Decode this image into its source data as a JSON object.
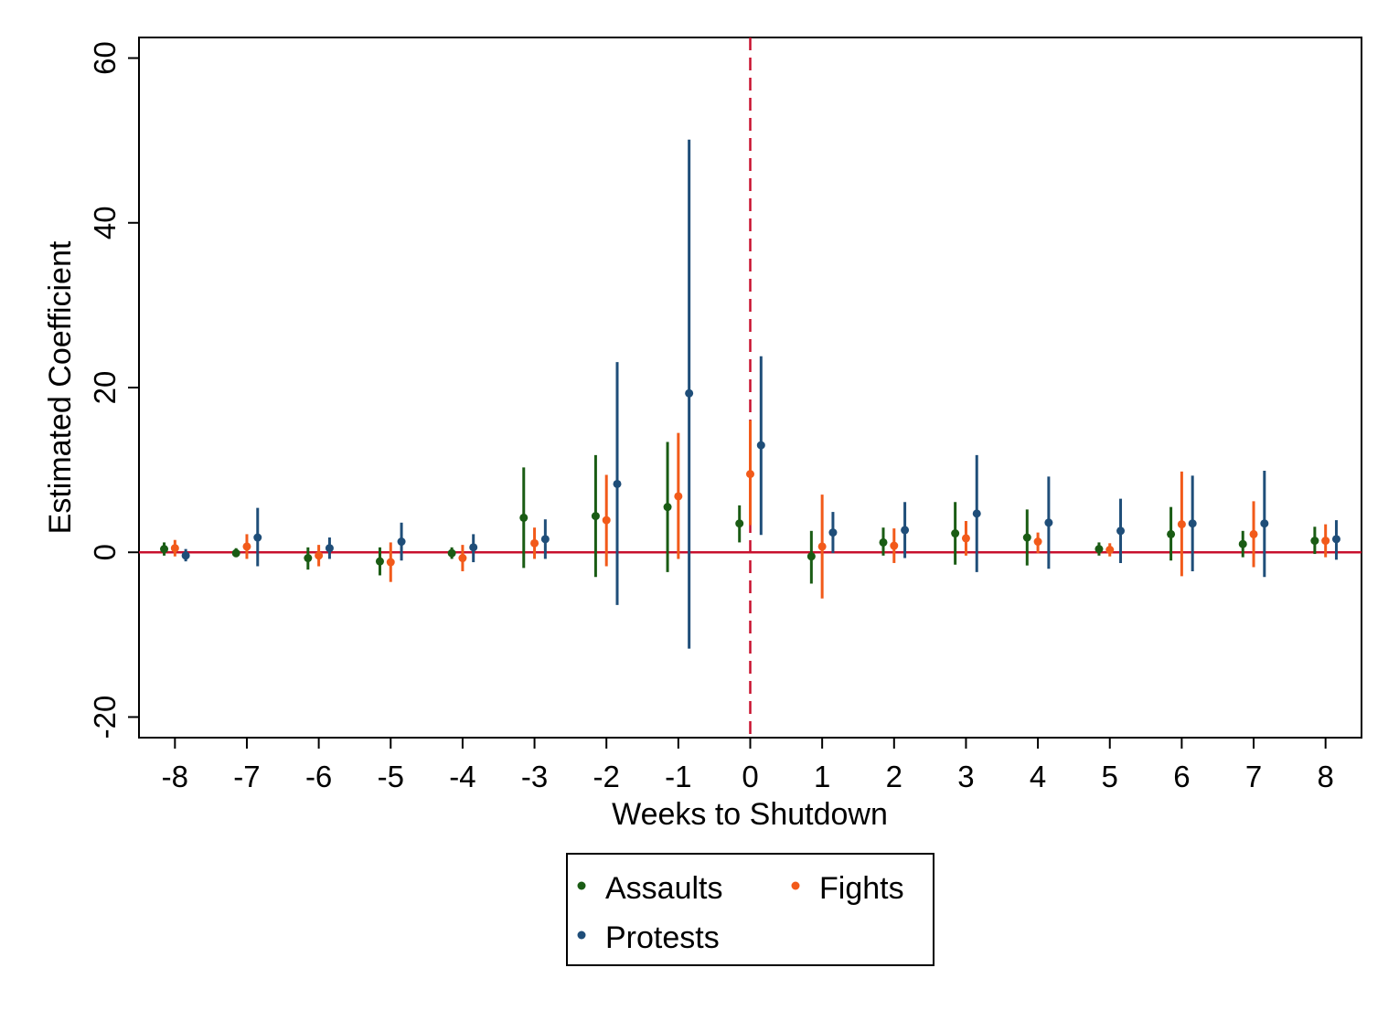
{
  "chart_data": {
    "type": "scatter",
    "title": "",
    "xlabel": "Weeks to Shutdown",
    "ylabel": "Estimated Coefficient",
    "xlim": [
      -8.5,
      8.5
    ],
    "ylim": [
      -22.5,
      62.5
    ],
    "x_ticks": [
      -8,
      -7,
      -6,
      -5,
      -4,
      -3,
      -2,
      -1,
      0,
      1,
      2,
      3,
      4,
      5,
      6,
      7,
      8
    ],
    "x_tick_labels": [
      "-8",
      "-7",
      "-6",
      "-5",
      "-4",
      "-3",
      "-2",
      "-1",
      "0",
      "1",
      "2",
      "3",
      "4",
      "5",
      "6",
      "7",
      "8"
    ],
    "y_ticks": [
      -20,
      0,
      20,
      40,
      60
    ],
    "y_tick_labels": [
      "-20",
      "0",
      "20",
      "40",
      "60"
    ],
    "grid": false,
    "reference_lines": {
      "horizontal_y": 0,
      "vertical_x": 0,
      "color": "#c8102e"
    },
    "legend": {
      "placement": "bottom-center",
      "entries": [
        "Assaults",
        "Fights",
        "Protests"
      ]
    },
    "x": [
      -8,
      -7,
      -6,
      -5,
      -4,
      -3,
      -2,
      -1,
      0,
      1,
      2,
      3,
      4,
      5,
      6,
      7,
      8
    ],
    "series": [
      {
        "name": "Assaults",
        "color": "#1a5c14",
        "offset": -0.15,
        "values": [
          0.4,
          -0.1,
          -0.7,
          -1.1,
          -0.1,
          4.2,
          4.4,
          5.5,
          3.5,
          -0.5,
          1.2,
          2.3,
          1.8,
          0.4,
          2.2,
          1.0,
          1.4
        ],
        "lower": [
          -0.4,
          -0.6,
          -2.1,
          -2.8,
          -0.8,
          -1.9,
          -3.0,
          -2.4,
          1.2,
          -3.8,
          -0.4,
          -1.5,
          -1.6,
          -0.4,
          -1.0,
          -0.6,
          -0.2
        ],
        "upper": [
          1.2,
          0.5,
          0.6,
          0.6,
          0.6,
          10.3,
          11.8,
          13.4,
          5.7,
          2.6,
          3.0,
          6.1,
          5.2,
          1.2,
          5.5,
          2.6,
          3.1
        ]
      },
      {
        "name": "Fights",
        "color": "#f25a1a",
        "offset": 0,
        "values": [
          0.5,
          0.7,
          -0.4,
          -1.2,
          -0.7,
          1.1,
          3.9,
          6.8,
          9.5,
          0.7,
          0.8,
          1.7,
          1.3,
          0.3,
          3.4,
          2.2,
          1.4
        ],
        "lower": [
          -0.5,
          -0.8,
          -1.7,
          -3.6,
          -2.3,
          -0.8,
          -1.7,
          -0.8,
          3.3,
          -5.6,
          -1.3,
          -0.4,
          -0.1,
          -0.5,
          -2.9,
          -1.8,
          -0.6
        ],
        "upper": [
          1.5,
          2.2,
          0.9,
          1.2,
          0.9,
          3.0,
          9.4,
          14.5,
          16.0,
          7.0,
          2.9,
          3.8,
          2.4,
          1.1,
          9.8,
          6.2,
          3.4
        ]
      },
      {
        "name": "Protests",
        "color": "#1f4e79",
        "offset": 0.15,
        "values": [
          -0.4,
          1.8,
          0.5,
          1.3,
          0.6,
          1.6,
          8.3,
          19.3,
          13.0,
          2.4,
          2.7,
          4.7,
          3.6,
          2.6,
          3.5,
          3.5,
          1.6
        ],
        "lower": [
          -1.1,
          -1.7,
          -0.8,
          -1.0,
          -1.2,
          -0.8,
          -6.4,
          -11.7,
          2.1,
          -0.1,
          -0.7,
          -2.4,
          -2.0,
          -1.3,
          -2.3,
          -3.0,
          -0.9
        ],
        "upper": [
          0.4,
          5.4,
          1.8,
          3.6,
          2.2,
          4.0,
          23.1,
          50.1,
          23.8,
          4.9,
          6.1,
          11.8,
          9.2,
          6.5,
          9.3,
          9.9,
          3.9
        ]
      }
    ]
  }
}
